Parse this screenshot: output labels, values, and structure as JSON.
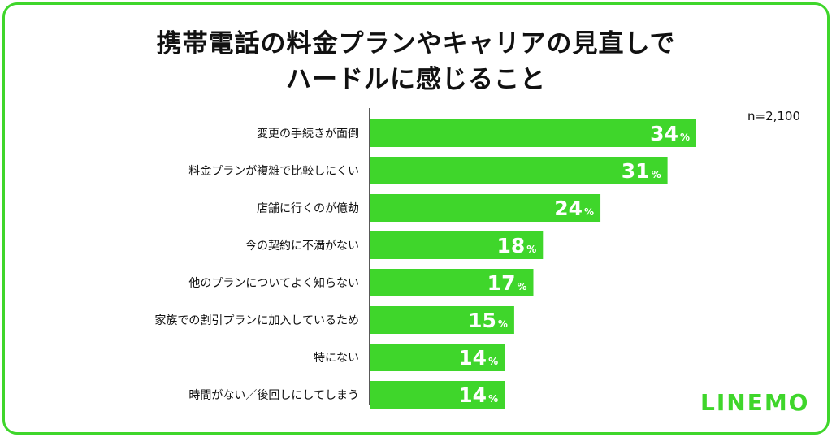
{
  "title_lines": [
    "携帯電話の料金プランやキャリアの見直しで",
    "ハードルに感じること"
  ],
  "sample_label": "n=2,100",
  "brand": "LINEMO",
  "bar_color": "#3fd62b",
  "chart_data": {
    "type": "bar",
    "orientation": "horizontal",
    "categories": [
      "変更の手続きが面倒",
      "料金プランが複雑で比較しにくい",
      "店舗に行くのが億劫",
      "今の契約に不満がない",
      "他のプランについてよく知らない",
      "家族での割引プランに加入しているため",
      "特にない",
      "時間がない／後回しにしてしまう"
    ],
    "values": [
      34,
      31,
      24,
      18,
      17,
      15,
      14,
      14
    ],
    "unit": "%",
    "xlim": [
      0,
      45
    ],
    "legend": "none",
    "grid": false
  }
}
